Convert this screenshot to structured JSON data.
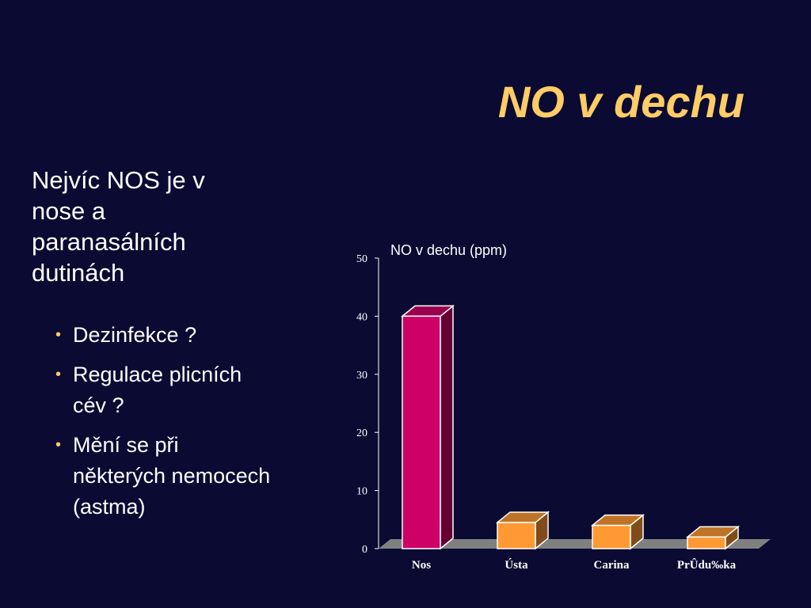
{
  "slide_title": "NO v dechu",
  "heading_lines": [
    "Nejvíc NOS je v",
    "nose a",
    "paranasálních",
    "dutinách"
  ],
  "bullets": [
    [
      "Dezinfekce ?"
    ],
    [
      "Regulace plicních",
      "cév ?"
    ],
    [
      "Mění se při",
      "některých nemocech",
      "(astma)"
    ]
  ],
  "chart_data": {
    "type": "bar",
    "title": "NO v dechu (ppm)",
    "categories": [
      "Nos",
      "Ústa",
      "Carina",
      "PrÛdu‰ka"
    ],
    "values": [
      40,
      4.5,
      4,
      2
    ],
    "colors": [
      "#cc0066",
      "#ff9933",
      "#ff9933",
      "#ff9933"
    ],
    "ylim": [
      0,
      50
    ],
    "yticks": [
      0,
      10,
      20,
      30,
      40,
      50
    ]
  }
}
